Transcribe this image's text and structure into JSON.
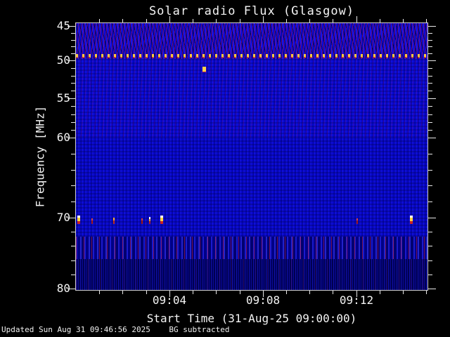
{
  "colors": {
    "background": "#000000",
    "text": "#f2f2f2",
    "plot_blue": "#0a0ad0",
    "interference_red": "#b01040",
    "marker_yellow": "#ffc83c",
    "marker_white": "#ffffff"
  },
  "chart": {
    "title": "Solar radio Flux (Glasgow)",
    "x_axis": {
      "title": "Start Time (31-Aug-25 09:00:00)",
      "minutes_total": 15.05,
      "major_ticks": [
        {
          "label": "09:04",
          "minute": 4
        },
        {
          "label": "09:08",
          "minute": 8
        },
        {
          "label": "09:12",
          "minute": 12
        }
      ],
      "minor_tick_every_minutes": 1
    },
    "y_axis": {
      "title": "Frequency [MHz]",
      "major_ticks": [
        {
          "label": "45",
          "pct": 1.1
        },
        {
          "label": "50",
          "pct": 13.9
        },
        {
          "label": "55",
          "pct": 28.2
        },
        {
          "label": "60",
          "pct": 42.9
        },
        {
          "label": "70",
          "pct": 72.9
        },
        {
          "label": "80",
          "pct": 99.5
        }
      ],
      "minor_ticks_between_majors": 4
    },
    "status_line": "Updated Sun Aug 31 09:46:56 2025    BG subtracted"
  },
  "chart_data": {
    "type": "heatmap",
    "title": "Solar radio Flux (Glasgow)",
    "xlabel": "Start Time (31-Aug-25 09:00:00)",
    "ylabel": "Frequency [MHz]",
    "x_range": [
      "09:00:00",
      "09:15:00"
    ],
    "x_tick_labels": [
      "09:04",
      "09:08",
      "09:12"
    ],
    "y_tick_labels": [
      45,
      50,
      55,
      60,
      70,
      80
    ],
    "y_axis_inverted": true,
    "colormap_description": "mostly uniform blue background flux with red RFI striping, no solar burst visible",
    "background_note": "BG subtracted",
    "features": {
      "dotted_carrier_line": {
        "freq_mhz": 49.3,
        "y_pct": 11.6,
        "description": "regularly pulsed narrowband interference appearing as yellow dotted horizontal line across full time range"
      },
      "point_source": {
        "freq_mhz": 50.8,
        "x_pct": 36.0,
        "y_pct": 16.4,
        "description": "isolated yellow intensity blob"
      },
      "rfi_spikes_71mhz": {
        "freq_mhz": 71,
        "bottom_pct": 24.8,
        "spikes": [
          {
            "x_pct": 0.3,
            "style": "bright"
          },
          {
            "x_pct": 4.4,
            "style": "red"
          },
          {
            "x_pct": 10.6,
            "style": "orange"
          },
          {
            "x_pct": 18.6,
            "style": "red"
          },
          {
            "x_pct": 20.8,
            "style": "white-top"
          },
          {
            "x_pct": 24.0,
            "style": "bright"
          },
          {
            "x_pct": 79.8,
            "style": "red"
          },
          {
            "x_pct": 95.0,
            "style": "bright"
          }
        ]
      },
      "broadband_noise_band": {
        "freq_range_mhz": [
          73,
          77
        ],
        "description": "band of vertical red/blue striped broadband noise"
      }
    }
  }
}
